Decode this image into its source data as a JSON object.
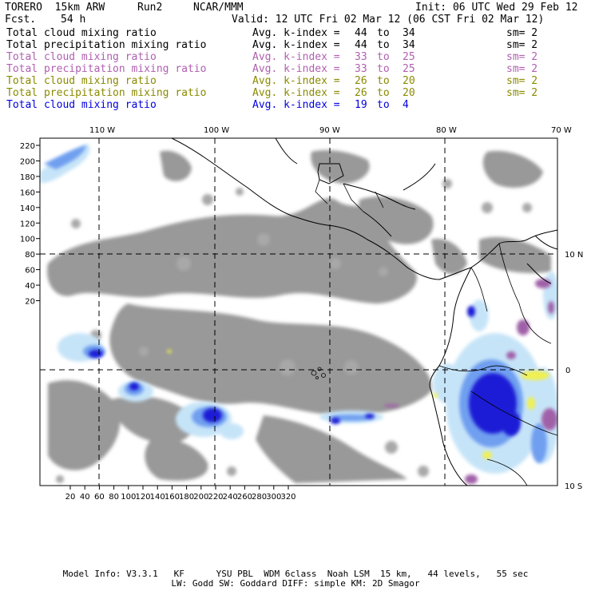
{
  "header": {
    "model": "TORERO  15km ARW",
    "run": "Run2",
    "center": "NCAR/MMM",
    "init": "Init: 06 UTC Wed 29 Feb 12",
    "fcst_label": "Fcst.",
    "fcst_value": "54 h",
    "valid": "Valid: 12 UTC Fri 02 Mar 12 (06 CST Fri 02 Mar 12)"
  },
  "legend": [
    {
      "field": "Total cloud mixing ratio",
      "kindex": "Avg. k-index =",
      "k_from": "44",
      "to": "to",
      "k_to": "34",
      "sm": "sm= 2",
      "color": "#000000"
    },
    {
      "field": "Total precipitation mixing ratio",
      "kindex": "Avg. k-index =",
      "k_from": "44",
      "to": "to",
      "k_to": "34",
      "sm": "sm= 2",
      "color": "#000000"
    },
    {
      "field": "Total cloud mixing ratio",
      "kindex": "Avg. k-index =",
      "k_from": "33",
      "to": "to",
      "k_to": "25",
      "sm": "sm= 2",
      "color": "#b060b0"
    },
    {
      "field": "Total precipitation mixing ratio",
      "kindex": "Avg. k-index =",
      "k_from": "33",
      "to": "to",
      "k_to": "25",
      "sm": "sm= 2",
      "color": "#b060b0"
    },
    {
      "field": "Total cloud mixing ratio",
      "kindex": "Avg. k-index =",
      "k_from": "26",
      "to": "to",
      "k_to": "20",
      "sm": "sm= 2",
      "color": "#8a8a00"
    },
    {
      "field": "Total precipitation mixing ratio",
      "kindex": "Avg. k-index =",
      "k_from": "26",
      "to": "to",
      "k_to": "20",
      "sm": "sm= 2",
      "color": "#8a8a00"
    },
    {
      "field": "Total cloud mixing ratio",
      "kindex": "Avg. k-index =",
      "k_from": "19",
      "to": "to",
      "k_to": "4",
      "sm": "",
      "color": "#0000e0"
    }
  ],
  "map": {
    "lon_labels": [
      "110 W",
      "100 W",
      "90 W",
      "80 W",
      "70 W"
    ],
    "lat_labels": [
      "10 N",
      "0",
      "10 S"
    ],
    "y_ticks": [
      "220",
      "200",
      "180",
      "160",
      "140",
      "120",
      "100",
      "80",
      "60",
      "40",
      "20"
    ],
    "x_ticks": [
      "20",
      "40",
      "60",
      "80",
      "100",
      "120",
      "140",
      "160",
      "180",
      "200",
      "220",
      "240",
      "260",
      "280",
      "300",
      "320"
    ],
    "colors": {
      "grey_cloud": "#999999",
      "light_blue": "#c6e4f8",
      "mid_blue": "#6f9ff0",
      "deep_blue": "#1a1ad6",
      "magenta": "#a060a8",
      "yellow": "#f0f050"
    }
  },
  "footer": {
    "line1": "Model Info: V3.3.1   KF      YSU PBL  WDM 6class  Noah LSM  15 km,   44 levels,   55 sec",
    "line2": "LW: Godd SW: Goddard DIFF: simple KM: 2D Smagor"
  }
}
